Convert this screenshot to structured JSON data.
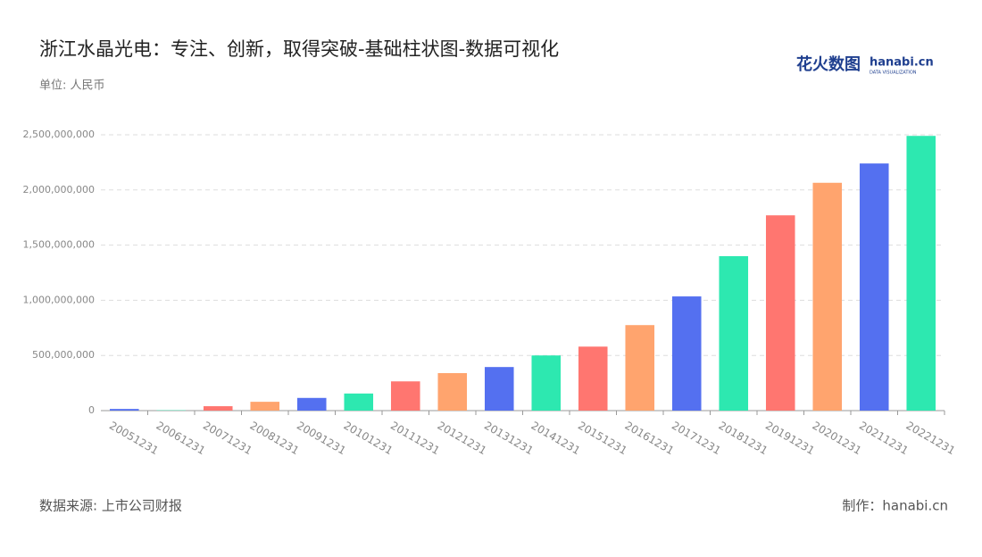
{
  "chart_data": {
    "type": "bar",
    "title": "浙江水晶光电：专注、创新，取得突破-基础柱状图-数据可视化",
    "subtitle": "单位: 人民币",
    "source": "数据来源: 上市公司财报",
    "credit": "制作：hanabi.cn",
    "logo": {
      "text": "花火数图",
      "brand": "hanabi.cn",
      "tagline": "DATA VISUALIZATION"
    },
    "categories": [
      "20051231",
      "20061231",
      "20071231",
      "20081231",
      "20091231",
      "20101231",
      "20111231",
      "20121231",
      "20131231",
      "20141231",
      "20151231",
      "20161231",
      "20171231",
      "20181231",
      "20191231",
      "20201231",
      "20211231",
      "20221231"
    ],
    "values": [
      15000000,
      3000000,
      40000000,
      80000000,
      115000000,
      155000000,
      265000000,
      340000000,
      395000000,
      500000000,
      580000000,
      775000000,
      1035000000,
      1400000000,
      1770000000,
      2065000000,
      2240000000,
      2490000000
    ],
    "colors": [
      "#5470f0",
      "#2de8b0",
      "#ff7670",
      "#ffa46e",
      "#5470f0",
      "#2de8b0",
      "#ff7670",
      "#ffa46e",
      "#5470f0",
      "#2de8b0",
      "#ff7670",
      "#ffa46e",
      "#5470f0",
      "#2de8b0",
      "#ff7670",
      "#ffa46e",
      "#5470f0",
      "#2de8b0"
    ],
    "ylim": [
      0,
      2500000000
    ],
    "yticks": [
      0,
      {
        "value": 500000000,
        "label": "500,000,000"
      },
      {
        "value": 1000000000,
        "label": "1,000,000,000"
      },
      {
        "value": 1500000000,
        "label": "1,500,000,000"
      },
      {
        "value": 2000000000,
        "label": "2,000,000,000"
      },
      {
        "value": 2500000000,
        "label": "2,500,000,000"
      }
    ],
    "grid": true
  }
}
